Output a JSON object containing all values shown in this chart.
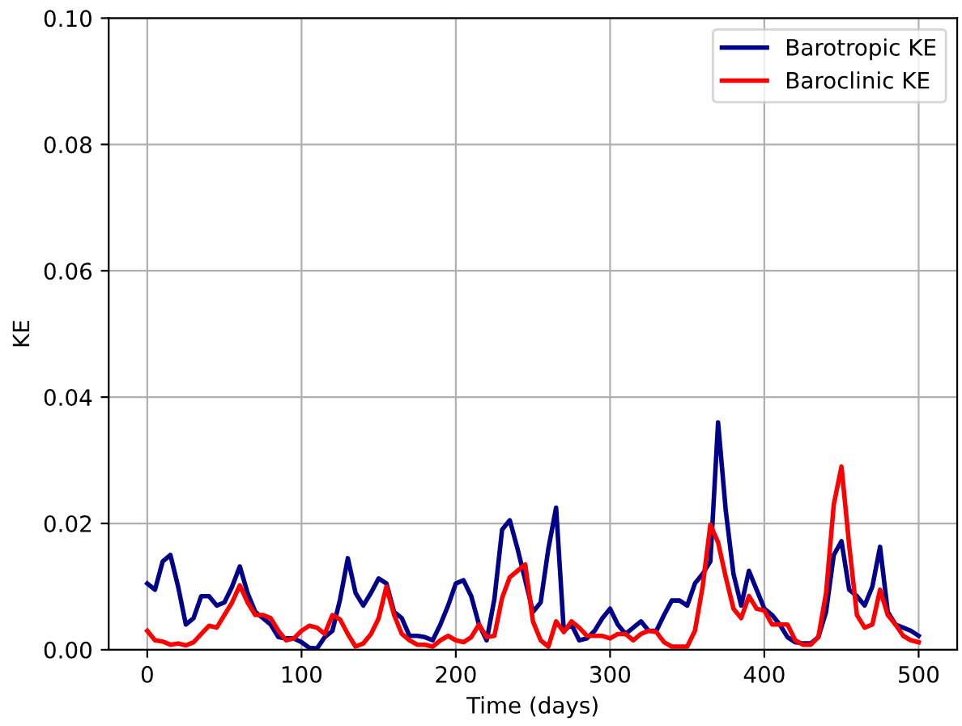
{
  "chart_data": {
    "type": "line",
    "xlabel": "Time (days)",
    "ylabel": "KE",
    "x": [
      0,
      5,
      10,
      15,
      20,
      25,
      30,
      35,
      40,
      45,
      50,
      55,
      60,
      65,
      70,
      75,
      80,
      85,
      90,
      95,
      100,
      105,
      110,
      115,
      120,
      125,
      130,
      135,
      140,
      145,
      150,
      155,
      160,
      165,
      170,
      175,
      180,
      185,
      190,
      195,
      200,
      205,
      210,
      215,
      220,
      225,
      230,
      235,
      240,
      245,
      250,
      255,
      260,
      265,
      270,
      275,
      280,
      285,
      290,
      295,
      300,
      305,
      310,
      315,
      320,
      325,
      330,
      335,
      340,
      345,
      350,
      355,
      360,
      365,
      370,
      375,
      380,
      385,
      390,
      395,
      400,
      405,
      410,
      415,
      420,
      425,
      430,
      435,
      440,
      445,
      450,
      455,
      460,
      465,
      470,
      475,
      480,
      485,
      490,
      495,
      500
    ],
    "series": [
      {
        "name": "Barotropic KE",
        "color": "#00008b",
        "values": [
          0.0105,
          0.0095,
          0.014,
          0.015,
          0.01,
          0.004,
          0.005,
          0.0085,
          0.0085,
          0.007,
          0.0075,
          0.01,
          0.0132,
          0.009,
          0.006,
          0.005,
          0.004,
          0.002,
          0.0018,
          0.0018,
          0.0012,
          0.0003,
          0.0002,
          0.002,
          0.003,
          0.008,
          0.0145,
          0.009,
          0.007,
          0.009,
          0.0113,
          0.0105,
          0.006,
          0.005,
          0.0022,
          0.0022,
          0.002,
          0.0015,
          0.004,
          0.007,
          0.0105,
          0.011,
          0.0085,
          0.004,
          0.0015,
          0.008,
          0.019,
          0.0205,
          0.016,
          0.011,
          0.006,
          0.0075,
          0.016,
          0.0225,
          0.003,
          0.004,
          0.0015,
          0.0018,
          0.003,
          0.005,
          0.0065,
          0.004,
          0.0025,
          0.0035,
          0.0045,
          0.003,
          0.003,
          0.0055,
          0.0078,
          0.0078,
          0.007,
          0.0105,
          0.012,
          0.014,
          0.036,
          0.022,
          0.012,
          0.007,
          0.0125,
          0.0095,
          0.0065,
          0.0055,
          0.004,
          0.002,
          0.0012,
          0.001,
          0.001,
          0.002,
          0.006,
          0.015,
          0.0172,
          0.0095,
          0.0085,
          0.007,
          0.01,
          0.0163,
          0.006,
          0.004,
          0.0035,
          0.003,
          0.0022
        ]
      },
      {
        "name": "Baroclinic KE",
        "color": "#ff0000",
        "values": [
          0.003,
          0.0015,
          0.0013,
          0.0008,
          0.001,
          0.0007,
          0.0012,
          0.0025,
          0.0038,
          0.0035,
          0.0055,
          0.0075,
          0.0102,
          0.0075,
          0.0055,
          0.0055,
          0.005,
          0.003,
          0.0015,
          0.0018,
          0.003,
          0.0038,
          0.0035,
          0.0025,
          0.0055,
          0.0048,
          0.0025,
          0.0005,
          0.001,
          0.0025,
          0.005,
          0.01,
          0.0055,
          0.0025,
          0.0015,
          0.0008,
          0.0008,
          0.0005,
          0.0015,
          0.0022,
          0.0015,
          0.0012,
          0.002,
          0.004,
          0.002,
          0.0022,
          0.0082,
          0.0115,
          0.0125,
          0.0135,
          0.0045,
          0.0015,
          0.0005,
          0.0045,
          0.0028,
          0.0045,
          0.0035,
          0.0022,
          0.0022,
          0.0022,
          0.0018,
          0.0025,
          0.0025,
          0.0015,
          0.0025,
          0.003,
          0.0028,
          0.0012,
          0.0005,
          0.0005,
          0.0005,
          0.003,
          0.01,
          0.0198,
          0.017,
          0.0115,
          0.0065,
          0.005,
          0.0085,
          0.0065,
          0.0062,
          0.004,
          0.004,
          0.004,
          0.0015,
          0.0008,
          0.0008,
          0.002,
          0.009,
          0.023,
          0.029,
          0.0165,
          0.0055,
          0.0035,
          0.004,
          0.0095,
          0.0055,
          0.004,
          0.0022,
          0.0015,
          0.0012
        ]
      }
    ],
    "xlim": [
      -25,
      525
    ],
    "xticks": [
      0,
      100,
      200,
      300,
      400,
      500
    ],
    "ylim": [
      0,
      0.1
    ],
    "yticks": [
      {
        "value": 0,
        "label": "0.00"
      },
      {
        "value": 0.02,
        "label": "0.02"
      },
      {
        "value": 0.04,
        "label": "0.04"
      },
      {
        "value": 0.06,
        "label": "0.06"
      },
      {
        "value": 0.08,
        "label": "0.08"
      },
      {
        "value": 0.1,
        "label": "0.10"
      }
    ],
    "grid": true,
    "legend": "top right",
    "marker": "none",
    "line_style": "solid"
  }
}
